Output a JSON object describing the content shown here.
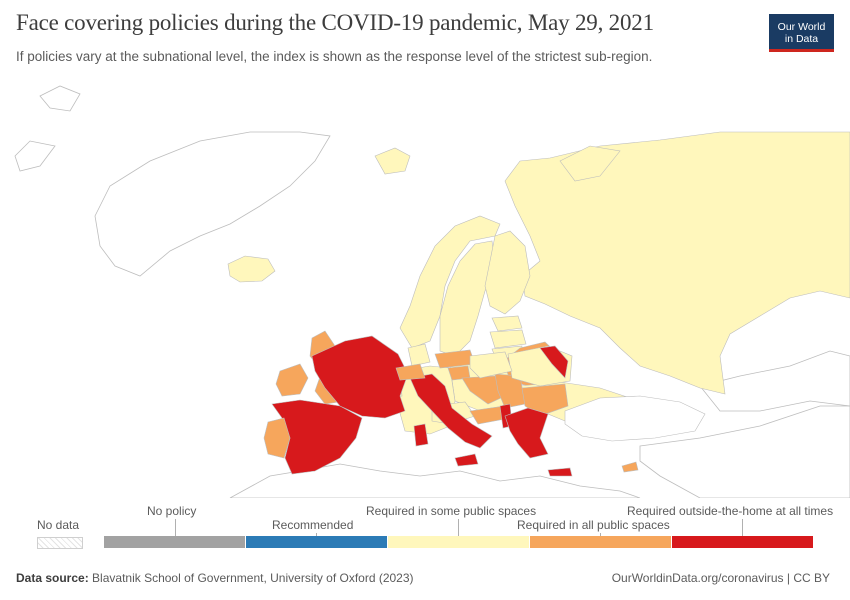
{
  "header": {
    "title": "Face covering policies during the COVID-19 pandemic, May 29, 2021",
    "subtitle": "If policies vary at the subnational level, the index is shown as the response level of the strictest sub-region."
  },
  "logo": {
    "line1": "Our World",
    "line2": "in Data"
  },
  "map": {
    "region": "Europe",
    "date": "May 29, 2021",
    "colors": {
      "no_policy": "#a2a2a2",
      "recommended": "#2c7bb6",
      "some_spaces": "#fff7bc",
      "all_spaces": "#f6a65c",
      "outside_home": "#d7191c",
      "outline": "#bdbdbd"
    },
    "countries": {
      "Spain": "outside_home",
      "France": "outside_home",
      "Italy": "outside_home",
      "Greece": "outside_home",
      "Moldova": "outside_home",
      "Albania": "outside_home",
      "Portugal": "all_spaces",
      "United Kingdom": "all_spaces",
      "Ireland": "all_spaces",
      "Belgium": "all_spaces",
      "Belarus": "all_spaces",
      "Austria": "all_spaces",
      "Slovakia": "all_spaces",
      "Croatia": "all_spaces",
      "Serbia": "all_spaces",
      "Bulgaria": "all_spaces",
      "Slovenia": "all_spaces",
      "Switzerland": "all_spaces",
      "Cyprus": "all_spaces",
      "Russia": "some_spaces",
      "Norway": "some_spaces",
      "Sweden": "some_spaces",
      "Finland": "some_spaces",
      "Estonia": "some_spaces",
      "Latvia": "some_spaces",
      "Lithuania": "some_spaces",
      "Poland": "some_spaces",
      "Germany": "some_spaces",
      "Czechia": "some_spaces",
      "Hungary": "some_spaces",
      "Romania": "some_spaces",
      "Ukraine": "some_spaces",
      "Denmark": "some_spaces",
      "Netherlands": "some_spaces",
      "Iceland": "some_spaces",
      "Svalbard": "some_spaces"
    }
  },
  "legend": {
    "no_data": "No data",
    "categories": [
      {
        "label": "No policy",
        "color": "#a2a2a2"
      },
      {
        "label": "Recommended",
        "color": "#2c7bb6"
      },
      {
        "label": "Required in some public spaces",
        "color": "#fff7bc"
      },
      {
        "label": "Required in all public spaces",
        "color": "#f6a65c"
      },
      {
        "label": "Required outside-the-home at all times",
        "color": "#d7191c"
      }
    ]
  },
  "footer": {
    "source_label": "Data source:",
    "source_text": "Blavatnik School of Government, University of Oxford (2023)",
    "url": "OurWorldinData.org/coronavirus | CC BY"
  }
}
